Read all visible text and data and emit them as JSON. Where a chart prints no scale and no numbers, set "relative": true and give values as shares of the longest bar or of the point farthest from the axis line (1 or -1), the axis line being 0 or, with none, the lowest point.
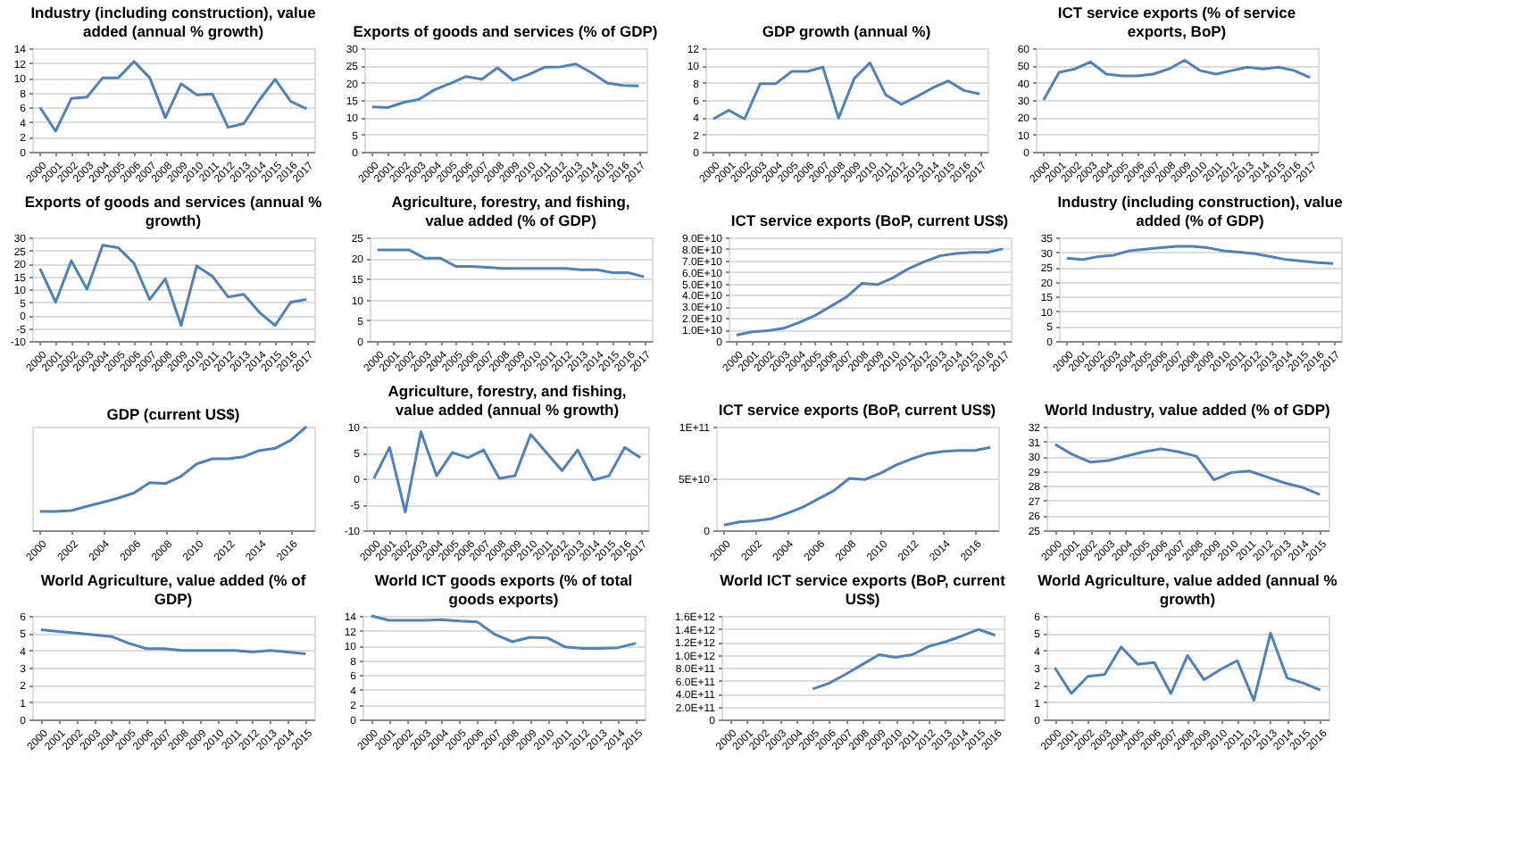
{
  "chart_data": [
    {
      "type": "line",
      "title": "Industry (including construction), value added (annual % growth)",
      "x": [
        2000,
        2001,
        2002,
        2003,
        2004,
        2005,
        2006,
        2007,
        2008,
        2009,
        2010,
        2011,
        2012,
        2013,
        2014,
        2015,
        2016,
        2017
      ],
      "xlim": [
        1999.5,
        2017.5
      ],
      "xticks": [
        2000,
        2001,
        2002,
        2003,
        2004,
        2005,
        2006,
        2007,
        2008,
        2009,
        2010,
        2011,
        2012,
        2013,
        2014,
        2015,
        2016,
        2017
      ],
      "ylim": [
        0,
        14
      ],
      "yticks": [
        0,
        2,
        4,
        6,
        8,
        10,
        12,
        14
      ],
      "grid": "y",
      "marker": "none",
      "series": [
        {
          "color": "#4f81bd",
          "values": [
            6,
            2.8,
            7.2,
            7.4,
            10,
            10,
            12.2,
            10,
            4.6,
            9.2,
            7.7,
            7.8,
            3.3,
            3.8,
            7,
            9.8,
            6.8,
            5.8
          ]
        }
      ]
    },
    {
      "type": "line",
      "title": "Exports of goods and services (% of GDP)",
      "x": [
        2000,
        2001,
        2002,
        2003,
        2004,
        2005,
        2006,
        2007,
        2008,
        2009,
        2010,
        2011,
        2012,
        2013,
        2014,
        2015,
        2016,
        2017
      ],
      "xlim": [
        1999.5,
        2017.5
      ],
      "xticks": [
        2000,
        2001,
        2002,
        2003,
        2004,
        2005,
        2006,
        2007,
        2008,
        2009,
        2010,
        2011,
        2012,
        2013,
        2014,
        2015,
        2016,
        2017
      ],
      "ylim": [
        0,
        30
      ],
      "yticks": [
        0,
        5,
        10,
        15,
        20,
        25,
        30
      ],
      "grid": "y",
      "marker": "none",
      "series": [
        {
          "color": "#4f81bd",
          "values": [
            13,
            12.8,
            14.3,
            15.2,
            18,
            19.8,
            21.8,
            21,
            24.3,
            20.7,
            22.4,
            24.5,
            24.6,
            25.4,
            22.9,
            19.9,
            19.2,
            19.1
          ]
        }
      ]
    },
    {
      "type": "line",
      "title": "GDP growth (annual %)",
      "x": [
        2000,
        2001,
        2002,
        2003,
        2004,
        2005,
        2006,
        2007,
        2008,
        2009,
        2010,
        2011,
        2012,
        2013,
        2014,
        2015,
        2016,
        2017
      ],
      "xlim": [
        1999.5,
        2017.5
      ],
      "xticks": [
        2000,
        2001,
        2002,
        2003,
        2004,
        2005,
        2006,
        2007,
        2008,
        2009,
        2010,
        2011,
        2012,
        2013,
        2014,
        2015,
        2016,
        2017
      ],
      "ylim": [
        0,
        12
      ],
      "yticks": [
        0,
        2,
        4,
        6,
        8,
        10,
        12
      ],
      "grid": "y",
      "marker": "none",
      "series": [
        {
          "color": "#4f81bd",
          "values": [
            3.8,
            4.8,
            3.8,
            7.9,
            7.9,
            9.3,
            9.3,
            9.8,
            3.9,
            8.5,
            10.3,
            6.6,
            5.5,
            6.4,
            7.4,
            8.2,
            7.1,
            6.7
          ]
        }
      ]
    },
    {
      "type": "line",
      "title": "ICT service exports (% of service exports, BoP)",
      "x": [
        2000,
        2001,
        2002,
        2003,
        2004,
        2005,
        2006,
        2007,
        2008,
        2009,
        2010,
        2011,
        2012,
        2013,
        2014,
        2015,
        2016,
        2017
      ],
      "xlim": [
        1999.5,
        2017.5
      ],
      "xticks": [
        2000,
        2001,
        2002,
        2003,
        2004,
        2005,
        2006,
        2007,
        2008,
        2009,
        2010,
        2011,
        2012,
        2013,
        2014,
        2015,
        2016,
        2017
      ],
      "ylim": [
        0,
        60
      ],
      "yticks": [
        0,
        10,
        20,
        30,
        40,
        50,
        60
      ],
      "grid": "y",
      "marker": "none",
      "series": [
        {
          "color": "#4f81bd",
          "values": [
            30,
            46,
            48,
            52,
            45,
            44,
            44,
            45,
            48,
            53,
            47,
            45,
            47,
            49,
            48,
            49,
            47,
            43
          ]
        }
      ]
    },
    {
      "type": "line",
      "title": "Exports of goods and services (annual % growth)",
      "x": [
        2000,
        2001,
        2002,
        2003,
        2004,
        2005,
        2006,
        2007,
        2008,
        2009,
        2010,
        2011,
        2012,
        2013,
        2014,
        2015,
        2016,
        2017
      ],
      "xlim": [
        1999.5,
        2017.5
      ],
      "xticks": [
        2000,
        2001,
        2002,
        2003,
        2004,
        2005,
        2006,
        2007,
        2008,
        2009,
        2010,
        2011,
        2012,
        2013,
        2014,
        2015,
        2016,
        2017
      ],
      "ylim": [
        -10,
        30
      ],
      "yticks": [
        -10,
        -5,
        0,
        5,
        10,
        15,
        20,
        25,
        30
      ],
      "grid": "y",
      "marker": "none",
      "series": [
        {
          "color": "#4f81bd",
          "values": [
            18,
            5,
            21,
            10,
            27,
            26,
            20,
            6,
            14,
            -4,
            19,
            15,
            7,
            8,
            1,
            -4,
            5,
            6
          ]
        }
      ]
    },
    {
      "type": "line",
      "title": "Agriculture, forestry, and fishing, value added (% of GDP)",
      "x": [
        2000,
        2001,
        2002,
        2003,
        2004,
        2005,
        2006,
        2007,
        2008,
        2009,
        2010,
        2011,
        2012,
        2013,
        2014,
        2015,
        2016,
        2017
      ],
      "xlim": [
        1999.5,
        2017.5
      ],
      "xticks": [
        2000,
        2001,
        2002,
        2003,
        2004,
        2005,
        2006,
        2007,
        2008,
        2009,
        2010,
        2011,
        2012,
        2013,
        2014,
        2015,
        2016,
        2017
      ],
      "ylim": [
        0,
        25
      ],
      "yticks": [
        0,
        5,
        10,
        15,
        20,
        25
      ],
      "grid": "y",
      "marker": "none",
      "series": [
        {
          "color": "#4f81bd",
          "values": [
            22,
            22,
            22,
            20,
            20,
            18,
            18,
            17.8,
            17.5,
            17.5,
            17.5,
            17.5,
            17.5,
            17.2,
            17.2,
            16.5,
            16.5,
            15.5
          ]
        }
      ]
    },
    {
      "type": "line",
      "title": "ICT service exports (BoP, current US$)",
      "x": [
        2000,
        2001,
        2002,
        2003,
        2004,
        2005,
        2006,
        2007,
        2008,
        2009,
        2010,
        2011,
        2012,
        2013,
        2014,
        2015,
        2016,
        2017
      ],
      "xlim": [
        1999.5,
        2017.5
      ],
      "xticks": [
        2000,
        2001,
        2002,
        2003,
        2004,
        2005,
        2006,
        2007,
        2008,
        2009,
        2010,
        2011,
        2012,
        2013,
        2014,
        2015,
        2016,
        2017
      ],
      "ylim": [
        0,
        90000000000
      ],
      "yticks": [
        0,
        {
          "value": 10000000000,
          "label": "1.0E+10"
        },
        {
          "value": 20000000000,
          "label": "2.0E+10"
        },
        {
          "value": 30000000000,
          "label": "3.0E+10"
        },
        {
          "value": 40000000000,
          "label": "4.0E+10"
        },
        {
          "value": 50000000000,
          "label": "5.0E+10"
        },
        {
          "value": 60000000000,
          "label": "6.0E+10"
        },
        {
          "value": 70000000000,
          "label": "7.0E+10"
        },
        {
          "value": 80000000000,
          "label": "8.0E+10"
        },
        {
          "value": 90000000000,
          "label": "9.0E+10"
        }
      ],
      "grid": "y",
      "marker": "none",
      "series": [
        {
          "color": "#4f81bd",
          "values": [
            5000000000,
            8000000000,
            9000000000,
            11000000000,
            16000000000,
            22000000000,
            30000000000,
            38000000000,
            50000000000,
            49000000000,
            55000000000,
            63000000000,
            69000000000,
            74000000000,
            76000000000,
            77000000000,
            77000000000,
            80000000000
          ]
        }
      ]
    },
    {
      "type": "line",
      "title": "Industry (including construction), value added (% of GDP)",
      "x": [
        2000,
        2001,
        2002,
        2003,
        2004,
        2005,
        2006,
        2007,
        2008,
        2009,
        2010,
        2011,
        2012,
        2013,
        2014,
        2015,
        2016,
        2017
      ],
      "xlim": [
        1999.5,
        2017.5
      ],
      "xticks": [
        2000,
        2001,
        2002,
        2003,
        2004,
        2005,
        2006,
        2007,
        2008,
        2009,
        2010,
        2011,
        2012,
        2013,
        2014,
        2015,
        2016,
        2017
      ],
      "ylim": [
        0,
        35
      ],
      "yticks": [
        0,
        5,
        10,
        15,
        20,
        25,
        30,
        35
      ],
      "grid": "y",
      "marker": "none",
      "series": [
        {
          "color": "#4f81bd",
          "values": [
            28,
            27.5,
            28.5,
            29,
            30.5,
            31,
            31.5,
            32,
            32,
            31.5,
            30.5,
            30,
            29.5,
            28.5,
            27.5,
            27,
            26.5,
            26.2
          ]
        }
      ]
    },
    {
      "type": "line",
      "title": "GDP (current US$)",
      "relative": true,
      "x": [
        2000,
        2001,
        2002,
        2003,
        2004,
        2005,
        2006,
        2007,
        2008,
        2009,
        2010,
        2011,
        2012,
        2013,
        2014,
        2015,
        2016,
        2017
      ],
      "xlim": [
        1999.5,
        2017.5
      ],
      "xticks": [
        2000,
        2002,
        2004,
        2006,
        2008,
        2010,
        2012,
        2014,
        2016
      ],
      "marker": "none",
      "series": [
        {
          "color": "#4f81bd",
          "values": [
            0.18,
            0.18,
            0.19,
            0.23,
            0.27,
            0.31,
            0.36,
            0.46,
            0.45,
            0.52,
            0.64,
            0.69,
            0.69,
            0.71,
            0.77,
            0.79,
            0.87,
            1.0
          ]
        }
      ]
    },
    {
      "type": "line",
      "title": "Agriculture, forestry, and fishing, value added (annual % growth)",
      "x": [
        2000,
        2001,
        2002,
        2003,
        2004,
        2005,
        2006,
        2007,
        2008,
        2009,
        2010,
        2011,
        2012,
        2013,
        2014,
        2015,
        2016,
        2017
      ],
      "xlim": [
        1999.5,
        2017.5
      ],
      "xticks": [
        2000,
        2001,
        2002,
        2003,
        2004,
        2005,
        2006,
        2007,
        2008,
        2009,
        2010,
        2011,
        2012,
        2013,
        2014,
        2015,
        2016,
        2017
      ],
      "ylim": [
        -10,
        10
      ],
      "yticks": [
        -10,
        -5,
        0,
        5,
        10
      ],
      "grid": "y",
      "marker": "none",
      "series": [
        {
          "color": "#4f81bd",
          "values": [
            0,
            6,
            -6.5,
            9,
            0.5,
            5,
            4,
            5.5,
            0,
            0.5,
            8.5,
            5,
            1.5,
            5.5,
            -0.3,
            0.5,
            6,
            4
          ]
        }
      ]
    },
    {
      "type": "line",
      "title": "ICT service exports (BoP, current US$)",
      "x": [
        2000,
        2001,
        2002,
        2003,
        2004,
        2005,
        2006,
        2007,
        2008,
        2009,
        2010,
        2011,
        2012,
        2013,
        2014,
        2015,
        2016,
        2017
      ],
      "xlim": [
        1999.5,
        2017.5
      ],
      "xticks": [
        2000,
        2002,
        2004,
        2006,
        2008,
        2010,
        2012,
        2014,
        2016
      ],
      "ylim": [
        0,
        100000000000
      ],
      "yticks": [
        0,
        {
          "value": 50000000000,
          "label": "5E+10"
        },
        {
          "value": 100000000000,
          "label": "1E+11"
        }
      ],
      "grid": "y",
      "marker": "none",
      "series": [
        {
          "color": "#4f81bd",
          "values": [
            5000000000,
            8000000000,
            9000000000,
            11000000000,
            16000000000,
            22000000000,
            30000000000,
            38000000000,
            50000000000,
            49000000000,
            55000000000,
            63000000000,
            69000000000,
            74000000000,
            76000000000,
            77000000000,
            77000000000,
            80000000000
          ]
        }
      ]
    },
    {
      "type": "line",
      "title": "World Industry, value added (% of GDP)",
      "x": [
        2000,
        2001,
        2002,
        2003,
        2004,
        2005,
        2006,
        2007,
        2008,
        2009,
        2010,
        2011,
        2012,
        2013,
        2014,
        2015
      ],
      "xlim": [
        1999.5,
        2015.5
      ],
      "xticks": [
        2000,
        2001,
        2002,
        2003,
        2004,
        2005,
        2006,
        2007,
        2008,
        2009,
        2010,
        2011,
        2012,
        2013,
        2014,
        2015
      ],
      "ylim": [
        25,
        32
      ],
      "yticks": [
        25,
        26,
        27,
        28,
        29,
        30,
        31,
        32
      ],
      "grid": "y",
      "marker": "none",
      "series": [
        {
          "color": "#4f81bd",
          "values": [
            30.8,
            30.1,
            29.6,
            29.7,
            30,
            30.3,
            30.5,
            30.3,
            30,
            28.4,
            28.9,
            29,
            28.6,
            28.2,
            27.9,
            27.4
          ]
        }
      ]
    },
    {
      "type": "line",
      "title": "World Agriculture, value added (% of GDP)",
      "x": [
        2000,
        2001,
        2002,
        2003,
        2004,
        2005,
        2006,
        2007,
        2008,
        2009,
        2010,
        2011,
        2012,
        2013,
        2014,
        2015
      ],
      "xlim": [
        1999.5,
        2015.5
      ],
      "xticks": [
        2000,
        2001,
        2002,
        2003,
        2004,
        2005,
        2006,
        2007,
        2008,
        2009,
        2010,
        2011,
        2012,
        2013,
        2014,
        2015
      ],
      "ylim": [
        0,
        6
      ],
      "yticks": [
        0,
        1,
        2,
        3,
        4,
        5,
        6
      ],
      "grid": "y",
      "marker": "none",
      "series": [
        {
          "color": "#4f81bd",
          "values": [
            5.2,
            5.1,
            5,
            4.9,
            4.8,
            4.4,
            4.1,
            4.1,
            4,
            4,
            4,
            4,
            3.9,
            4,
            3.9,
            3.8
          ]
        }
      ]
    },
    {
      "type": "line",
      "title": "World ICT goods exports (% of total goods exports)",
      "x": [
        2000,
        2001,
        2002,
        2003,
        2004,
        2005,
        2006,
        2007,
        2008,
        2009,
        2010,
        2011,
        2012,
        2013,
        2014,
        2015
      ],
      "xlim": [
        1999.5,
        2015.5
      ],
      "xticks": [
        2000,
        2001,
        2002,
        2003,
        2004,
        2005,
        2006,
        2007,
        2008,
        2009,
        2010,
        2011,
        2012,
        2013,
        2014,
        2015
      ],
      "ylim": [
        0,
        14
      ],
      "yticks": [
        0,
        2,
        4,
        6,
        8,
        10,
        12,
        14
      ],
      "grid": "y",
      "marker": "none",
      "series": [
        {
          "color": "#4f81bd",
          "values": [
            14,
            13.4,
            13.4,
            13.4,
            13.5,
            13.3,
            13.2,
            11.5,
            10.5,
            11.1,
            11,
            9.8,
            9.6,
            9.6,
            9.7,
            10.3
          ]
        }
      ]
    },
    {
      "type": "line",
      "title": "World ICT service exports (BoP, current US$)",
      "xlim": [
        1999.5,
        2016.5
      ],
      "xticks": [
        2000,
        2001,
        2002,
        2003,
        2004,
        2005,
        2006,
        2007,
        2008,
        2009,
        2010,
        2011,
        2012,
        2013,
        2014,
        2015,
        2016
      ],
      "ylim": [
        0,
        1600000000000
      ],
      "yticks": [
        0,
        {
          "value": 200000000000,
          "label": "2.0E+11"
        },
        {
          "value": 400000000000,
          "label": "4.0E+11"
        },
        {
          "value": 600000000000,
          "label": "6.0E+11"
        },
        {
          "value": 800000000000,
          "label": "8.0E+11"
        },
        {
          "value": 1000000000000,
          "label": "1.0E+12"
        },
        {
          "value": 1200000000000,
          "label": "1.2E+12"
        },
        {
          "value": 1400000000000,
          "label": "1.4E+12"
        },
        {
          "value": 1600000000000,
          "label": "1.6E+12"
        }
      ],
      "grid": "y",
      "marker": "none",
      "series": [
        {
          "color": "#4f81bd",
          "x": [
            2005,
            2006,
            2007,
            2008,
            2009,
            2010,
            2011,
            2012,
            2013,
            2014,
            2015,
            2016
          ],
          "values": [
            470000000000,
            560000000000,
            700000000000,
            850000000000,
            1000000000000,
            960000000000,
            1000000000000,
            1130000000000,
            1200000000000,
            1290000000000,
            1390000000000,
            1300000000000
          ]
        }
      ]
    },
    {
      "type": "line",
      "title": "World Agriculture, value added (annual % growth)",
      "x": [
        2000,
        2001,
        2002,
        2003,
        2004,
        2005,
        2006,
        2007,
        2008,
        2009,
        2010,
        2011,
        2012,
        2013,
        2014,
        2015,
        2016
      ],
      "xlim": [
        1999.5,
        2016.5
      ],
      "xticks": [
        2000,
        2001,
        2002,
        2003,
        2004,
        2005,
        2006,
        2007,
        2008,
        2009,
        2010,
        2011,
        2012,
        2013,
        2014,
        2015,
        2016
      ],
      "ylim": [
        0,
        6
      ],
      "yticks": [
        0,
        1,
        2,
        3,
        4,
        5,
        6
      ],
      "grid": "y",
      "marker": "none",
      "series": [
        {
          "color": "#4f81bd",
          "values": [
            3,
            1.5,
            2.5,
            2.6,
            4.2,
            3.2,
            3.3,
            1.5,
            3.7,
            2.3,
            2.9,
            3.4,
            1.1,
            5,
            2.4,
            2.1,
            1.7
          ]
        }
      ]
    }
  ]
}
